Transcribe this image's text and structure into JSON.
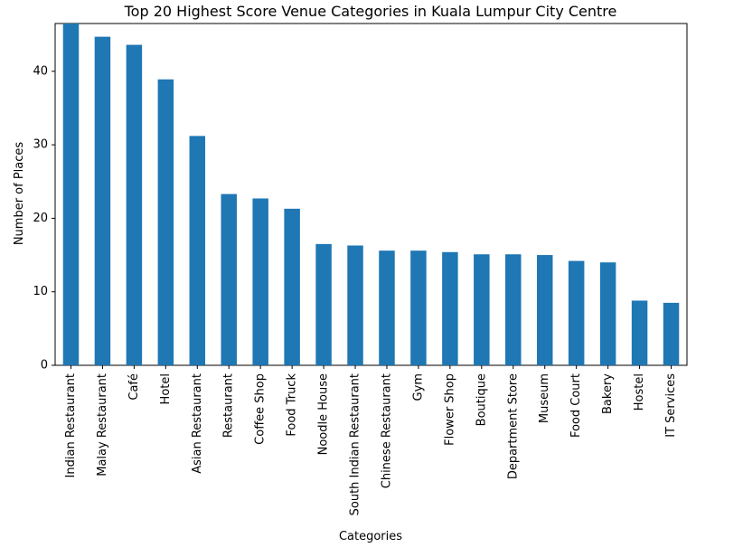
{
  "chart_data": {
    "type": "bar",
    "title": "Top 20 Highest Score Venue Categories in Kuala Lumpur City Centre",
    "xlabel": "Categories",
    "ylabel": "Number of Places",
    "categories": [
      "Indian Restaurant",
      "Malay Restaurant",
      "Café",
      "Hotel",
      "Asian Restaurant",
      "Restaurant",
      "Coffee Shop",
      "Food Truck",
      "Noodle House",
      "South Indian Restaurant",
      "Chinese Restaurant",
      "Gym",
      "Flower Shop",
      "Boutique",
      "Department Store",
      "Museum",
      "Food Court",
      "Bakery",
      "Hostel",
      "IT Services"
    ],
    "values": [
      46.5,
      44.7,
      43.6,
      38.9,
      31.2,
      23.3,
      22.7,
      21.3,
      16.5,
      16.3,
      15.6,
      15.6,
      15.4,
      15.1,
      15.1,
      15.0,
      14.2,
      14.0,
      8.8,
      8.5
    ],
    "ylim": [
      0,
      46.5
    ],
    "yticks": [
      0,
      10,
      20,
      30,
      40
    ],
    "bar_color": "#1f77b4",
    "grid": false,
    "legend": "none"
  }
}
